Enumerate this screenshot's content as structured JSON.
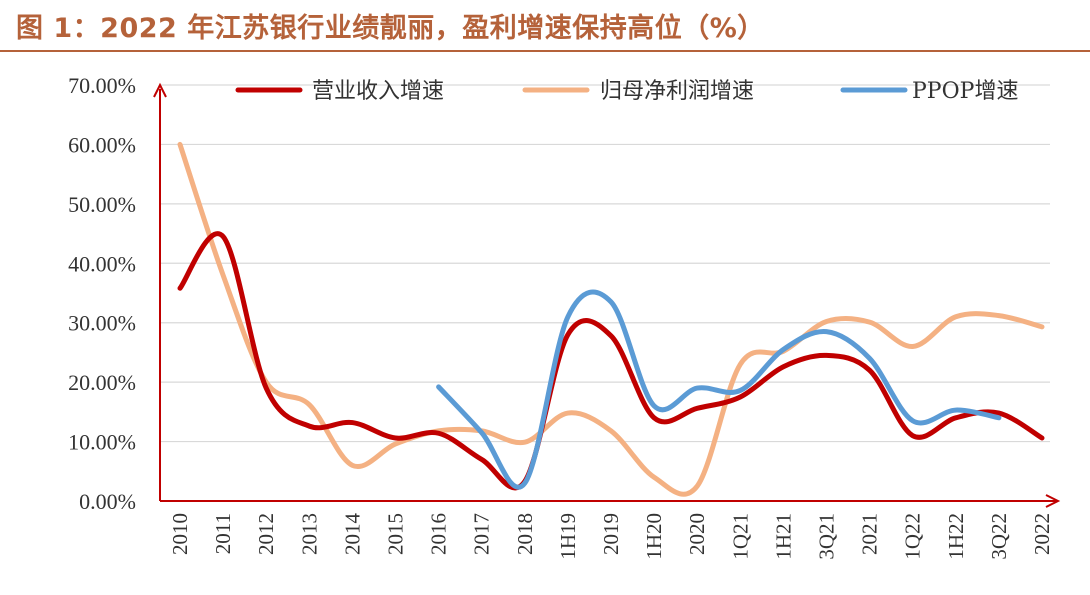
{
  "figure_title": "图 1：2022 年江苏银行业绩靓丽，盈利增速保持高位（%）",
  "chart_data": {
    "type": "line",
    "title": "图 1：2022 年江苏银行业绩靓丽，盈利增速保持高位（%）",
    "xlabel": "",
    "ylabel": "",
    "ylim": [
      0,
      70
    ],
    "y_ticks": [
      "0.00%",
      "10.00%",
      "20.00%",
      "30.00%",
      "40.00%",
      "50.00%",
      "60.00%",
      "70.00%"
    ],
    "categories": [
      "2010",
      "2011",
      "2012",
      "2013",
      "2014",
      "2015",
      "2016",
      "2017",
      "2018",
      "1H19",
      "2019",
      "1H20",
      "2020",
      "1Q21",
      "1H21",
      "3Q21",
      "2021",
      "1Q22",
      "1H22",
      "3Q22",
      "2022"
    ],
    "grid": "horizontal",
    "legend_position": "top",
    "series": [
      {
        "name": "营业收入增速",
        "color": "#c00000",
        "values": [
          35.8,
          44.5,
          19.0,
          12.6,
          13.2,
          10.6,
          11.4,
          7.0,
          3.3,
          28.0,
          27.8,
          14.0,
          15.6,
          17.5,
          22.6,
          24.5,
          22.0,
          11.0,
          14.0,
          14.8,
          10.6
        ]
      },
      {
        "name": "归母净利润增速",
        "color": "#f4b183",
        "values": [
          60.0,
          38.0,
          20.0,
          16.2,
          6.0,
          9.6,
          11.8,
          11.8,
          9.9,
          14.8,
          11.8,
          4.0,
          2.5,
          23.0,
          25.2,
          30.2,
          30.1,
          26.0,
          31.0,
          31.2,
          29.3
        ]
      },
      {
        "name": "PPOP增速",
        "color": "#5b9bd5",
        "values": [
          null,
          null,
          null,
          null,
          null,
          null,
          19.2,
          11.5,
          3.0,
          31.0,
          33.5,
          16.0,
          19.0,
          18.6,
          25.5,
          28.5,
          24.0,
          13.5,
          15.3,
          14.0,
          null
        ]
      }
    ]
  }
}
